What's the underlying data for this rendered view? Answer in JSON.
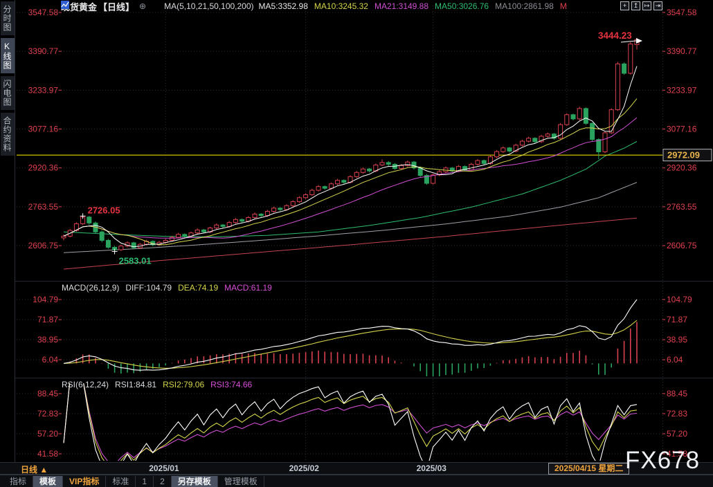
{
  "header": {
    "symbol": "现货黄金",
    "period": "【日线】",
    "link_icon": "⊕",
    "ma_settings": "MA(5,10,21,50,100,200)",
    "ma_items": [
      {
        "label": "MA5:3352.98",
        "color": "#e9e9ec"
      },
      {
        "label": "MA10:3245.32",
        "color": "#d4d44a"
      },
      {
        "label": "MA21:3149.88",
        "color": "#d04fd2"
      },
      {
        "label": "MA50:3026.76",
        "color": "#2fbf6f"
      },
      {
        "label": "MA100:2861.98",
        "color": "#8d8d95"
      },
      {
        "label": "M",
        "color": "#e0404e"
      }
    ],
    "tool_icons": [
      {
        "name": "pan-tool-icon",
        "glyph": "+"
      },
      {
        "name": "axis-scale-up-icon",
        "glyph": "↥"
      },
      {
        "name": "axis-scale-right-icon",
        "glyph": "↦"
      },
      {
        "name": "exit-full-chart-icon",
        "glyph": "⇥"
      }
    ]
  },
  "sidebar": {
    "items": [
      {
        "label": "分时图",
        "active": false
      },
      {
        "label": "K线图",
        "active": true
      },
      {
        "label": "闪电图",
        "active": false
      },
      {
        "label": "合约资料",
        "active": false
      }
    ]
  },
  "main_panel": {
    "price_line_label": "2972.09",
    "annotations": {
      "swing_high": "2726.05",
      "swing_low": "2583.01",
      "latest_high": "3444.23"
    }
  },
  "macd_panel": {
    "title": "MACD(26,12,9)",
    "diff": "DIFF:104.79",
    "dea": "DEA:74.19",
    "macd": "MACD:61.19"
  },
  "rsi_panel": {
    "title": "RSI(6,12,24)",
    "rsi1": "RSI1:84.81",
    "rsi2": "RSI2:79.06",
    "rsi3": "RSI3:74.66"
  },
  "xaxis": {
    "period_button": "日线 ▲",
    "months": [
      {
        "label": "2025/01",
        "index": 16
      },
      {
        "label": "2025/02",
        "index": 38
      },
      {
        "label": "2025/03",
        "index": 58
      }
    ],
    "current_date": "2025/04/15 星期二"
  },
  "toolbar": {
    "items": [
      {
        "label": "指标",
        "style": "plain"
      },
      {
        "label": "模板",
        "style": "selected"
      },
      {
        "label": "VIP指标",
        "style": "vip"
      },
      {
        "label": "标准",
        "style": "plain"
      },
      {
        "label": "1",
        "style": "plain"
      },
      {
        "label": "2",
        "style": "plain"
      },
      {
        "label": "另存模板",
        "style": "selected"
      },
      {
        "label": "管理模板",
        "style": "plain"
      }
    ]
  },
  "watermark": "FX678",
  "chart_data": {
    "type": "candlestick",
    "symbol": "现货黄金",
    "interval": "daily",
    "y_axis": {
      "ticks": [
        3547.58,
        3390.77,
        3233.97,
        3077.16,
        2920.36,
        2763.55,
        2606.75
      ]
    },
    "price_line_value": 2972.09,
    "month_gridline_indices": [
      16,
      38,
      58,
      79
    ],
    "annotations": [
      {
        "index": 3,
        "type": "high",
        "value": 2726.05
      },
      {
        "index": 8,
        "type": "low",
        "value": 2583.01
      },
      {
        "index": 90,
        "type": "high",
        "value": 3444.23
      }
    ],
    "candles": [
      [
        2638,
        2652,
        2628,
        2645
      ],
      [
        2645,
        2674,
        2640,
        2668
      ],
      [
        2668,
        2701,
        2663,
        2695
      ],
      [
        2695,
        2726.05,
        2690,
        2722
      ],
      [
        2722,
        2727,
        2690,
        2698
      ],
      [
        2698,
        2704,
        2655,
        2662
      ],
      [
        2662,
        2668,
        2620,
        2628
      ],
      [
        2628,
        2634,
        2594,
        2600
      ],
      [
        2600,
        2606,
        2583.01,
        2590
      ],
      [
        2590,
        2611,
        2585,
        2605
      ],
      [
        2605,
        2624,
        2600,
        2618
      ],
      [
        2618,
        2622,
        2592,
        2598
      ],
      [
        2598,
        2617,
        2593,
        2612
      ],
      [
        2612,
        2630,
        2607,
        2624
      ],
      [
        2624,
        2628,
        2604,
        2610
      ],
      [
        2610,
        2626,
        2605,
        2620
      ],
      [
        2620,
        2634,
        2615,
        2628
      ],
      [
        2628,
        2646,
        2623,
        2640
      ],
      [
        2640,
        2658,
        2635,
        2652
      ],
      [
        2652,
        2656,
        2639,
        2645
      ],
      [
        2645,
        2663,
        2640,
        2658
      ],
      [
        2658,
        2676,
        2653,
        2670
      ],
      [
        2670,
        2674,
        2656,
        2662
      ],
      [
        2662,
        2683,
        2657,
        2678
      ],
      [
        2678,
        2696,
        2673,
        2690
      ],
      [
        2690,
        2694,
        2678,
        2684
      ],
      [
        2684,
        2706,
        2679,
        2700
      ],
      [
        2700,
        2718,
        2695,
        2712
      ],
      [
        2712,
        2716,
        2699,
        2705
      ],
      [
        2705,
        2726,
        2700,
        2720
      ],
      [
        2720,
        2740,
        2715,
        2734
      ],
      [
        2734,
        2738,
        2722,
        2728
      ],
      [
        2728,
        2751,
        2723,
        2745
      ],
      [
        2745,
        2764,
        2740,
        2758
      ],
      [
        2758,
        2762,
        2746,
        2752
      ],
      [
        2752,
        2774,
        2747,
        2768
      ],
      [
        2768,
        2790,
        2763,
        2784
      ],
      [
        2784,
        2806,
        2779,
        2800
      ],
      [
        2800,
        2818,
        2795,
        2812
      ],
      [
        2812,
        2836,
        2807,
        2830
      ],
      [
        2830,
        2851,
        2825,
        2845
      ],
      [
        2845,
        2849,
        2832,
        2838
      ],
      [
        2838,
        2862,
        2833,
        2856
      ],
      [
        2856,
        2876,
        2851,
        2870
      ],
      [
        2870,
        2874,
        2856,
        2862
      ],
      [
        2862,
        2891,
        2857,
        2885
      ],
      [
        2885,
        2908,
        2880,
        2902
      ],
      [
        2902,
        2922,
        2897,
        2916
      ],
      [
        2916,
        2920,
        2902,
        2908
      ],
      [
        2908,
        2938,
        2903,
        2932
      ],
      [
        2932,
        2955,
        2927,
        2942
      ],
      [
        2942,
        2948,
        2928,
        2935
      ],
      [
        2935,
        2940,
        2912,
        2918
      ],
      [
        2918,
        2936,
        2913,
        2930
      ],
      [
        2930,
        2950,
        2925,
        2944
      ],
      [
        2944,
        2948,
        2914,
        2920
      ],
      [
        2920,
        2926,
        2884,
        2890
      ],
      [
        2890,
        2896,
        2852,
        2858
      ],
      [
        2858,
        2898,
        2853,
        2892
      ],
      [
        2892,
        2911,
        2887,
        2905
      ],
      [
        2905,
        2926,
        2900,
        2920
      ],
      [
        2920,
        2924,
        2902,
        2908
      ],
      [
        2908,
        2932,
        2903,
        2926
      ],
      [
        2926,
        2930,
        2906,
        2912
      ],
      [
        2912,
        2941,
        2907,
        2935
      ],
      [
        2935,
        2956,
        2930,
        2950
      ],
      [
        2950,
        2954,
        2932,
        2938
      ],
      [
        2938,
        2971,
        2933,
        2965
      ],
      [
        2965,
        2992,
        2960,
        2986
      ],
      [
        2986,
        3007,
        2981,
        3001
      ],
      [
        3001,
        3005,
        2982,
        2988
      ],
      [
        2988,
        3018,
        2983,
        3012
      ],
      [
        3012,
        3034,
        3007,
        3028
      ],
      [
        3028,
        3046,
        3023,
        3040
      ],
      [
        3040,
        3044,
        3020,
        3026
      ],
      [
        3026,
        3054,
        3021,
        3048
      ],
      [
        3048,
        3063,
        3043,
        3057
      ],
      [
        3057,
        3061,
        3034,
        3040
      ],
      [
        3040,
        3101,
        3035,
        3095
      ],
      [
        3095,
        3141,
        3090,
        3135
      ],
      [
        3135,
        3139,
        3112,
        3118
      ],
      [
        3118,
        3167,
        3113,
        3160
      ],
      [
        3160,
        3164,
        3094,
        3100
      ],
      [
        3100,
        3104,
        3028,
        3035
      ],
      [
        3035,
        3040,
        2956,
        2985
      ],
      [
        2985,
        3068,
        2980,
        3062
      ],
      [
        3062,
        3161,
        3057,
        3155
      ],
      [
        3155,
        3348,
        3150,
        3340
      ],
      [
        3340,
        3346,
        3296,
        3302
      ],
      [
        3302,
        3428,
        3297,
        3420
      ],
      [
        3418,
        3444.23,
        3398,
        3438
      ]
    ],
    "overlays": {
      "ma50_points": [
        [
          0,
          2662
        ],
        [
          8,
          2652
        ],
        [
          16,
          2644
        ],
        [
          24,
          2642
        ],
        [
          32,
          2648
        ],
        [
          40,
          2662
        ],
        [
          48,
          2688
        ],
        [
          56,
          2720
        ],
        [
          64,
          2762
        ],
        [
          72,
          2815
        ],
        [
          78,
          2870
        ],
        [
          82,
          2915
        ],
        [
          85,
          2968
        ],
        [
          88,
          3000
        ],
        [
          90,
          3027
        ]
      ],
      "ma100_points": [
        [
          0,
          2578
        ],
        [
          10,
          2592
        ],
        [
          20,
          2608
        ],
        [
          30,
          2626
        ],
        [
          40,
          2646
        ],
        [
          50,
          2668
        ],
        [
          60,
          2694
        ],
        [
          70,
          2726
        ],
        [
          78,
          2762
        ],
        [
          84,
          2800
        ],
        [
          90,
          2862
        ]
      ],
      "ma200_points": [
        [
          0,
          2512
        ],
        [
          15,
          2546
        ],
        [
          30,
          2578
        ],
        [
          45,
          2610
        ],
        [
          60,
          2644
        ],
        [
          75,
          2682
        ],
        [
          90,
          2718
        ]
      ]
    },
    "macd": {
      "ticks": [
        104.79,
        71.87,
        38.95,
        6.04
      ],
      "diff_end": 104.79,
      "dea_end": 74.19,
      "hist_end": 61.19
    },
    "rsi": {
      "ticks": [
        88.45,
        72.83,
        57.2,
        41.58
      ],
      "end_values": [
        84.81,
        79.06,
        74.66
      ]
    }
  }
}
